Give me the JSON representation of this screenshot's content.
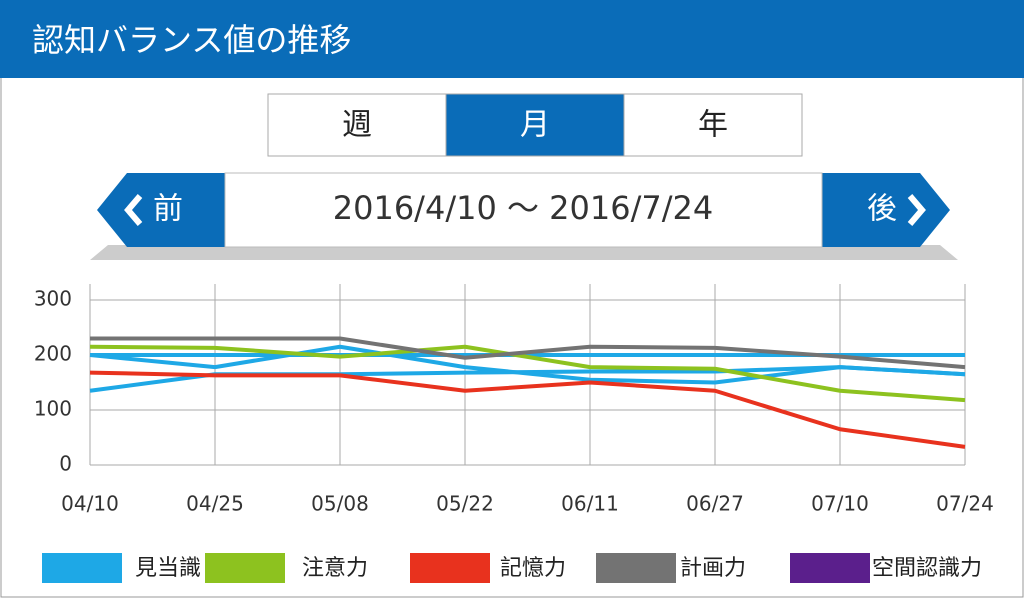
{
  "header": {
    "title": "認知バランス値の推移"
  },
  "tabs": {
    "items": [
      "週",
      "月",
      "年"
    ],
    "selected": 1
  },
  "nav": {
    "prev": "前",
    "range": "2016/4/10 ～ 2016/7/24",
    "next": "後"
  },
  "chart_data": {
    "type": "line",
    "categories": [
      "04/10",
      "04/25",
      "05/08",
      "05/22",
      "06/11",
      "06/27",
      "07/10",
      "07/24"
    ],
    "ylim": [
      0,
      300
    ],
    "yticks": [
      0,
      100,
      200,
      300
    ],
    "grid": true,
    "series": [
      {
        "name": "見当識",
        "color": "#1ea8e6",
        "values": [
          200,
          178,
          215,
          178,
          155,
          150,
          178,
          165
        ]
      },
      {
        "color": "#1ea8e6",
        "values": [
          200,
          200,
          200,
          200,
          200,
          200,
          200,
          200
        ]
      },
      {
        "color": "#1ea8e6",
        "values": [
          135,
          165,
          165,
          168,
          170,
          170,
          178,
          165
        ]
      },
      {
        "name": "注意力",
        "color": "#8dc21f",
        "values": [
          215,
          213,
          197,
          215,
          178,
          175,
          135,
          118
        ]
      },
      {
        "name": "記憶力",
        "color": "#e8321e",
        "values": [
          168,
          163,
          163,
          135,
          150,
          135,
          65,
          33
        ]
      },
      {
        "name": "計画力",
        "color": "#737373",
        "values": [
          230,
          230,
          230,
          195,
          215,
          213,
          197,
          178
        ]
      },
      {
        "name": "空間認識力",
        "color": "#5b1f8c",
        "values": [
          null,
          null,
          null,
          null,
          null,
          null,
          null,
          null
        ]
      }
    ]
  }
}
